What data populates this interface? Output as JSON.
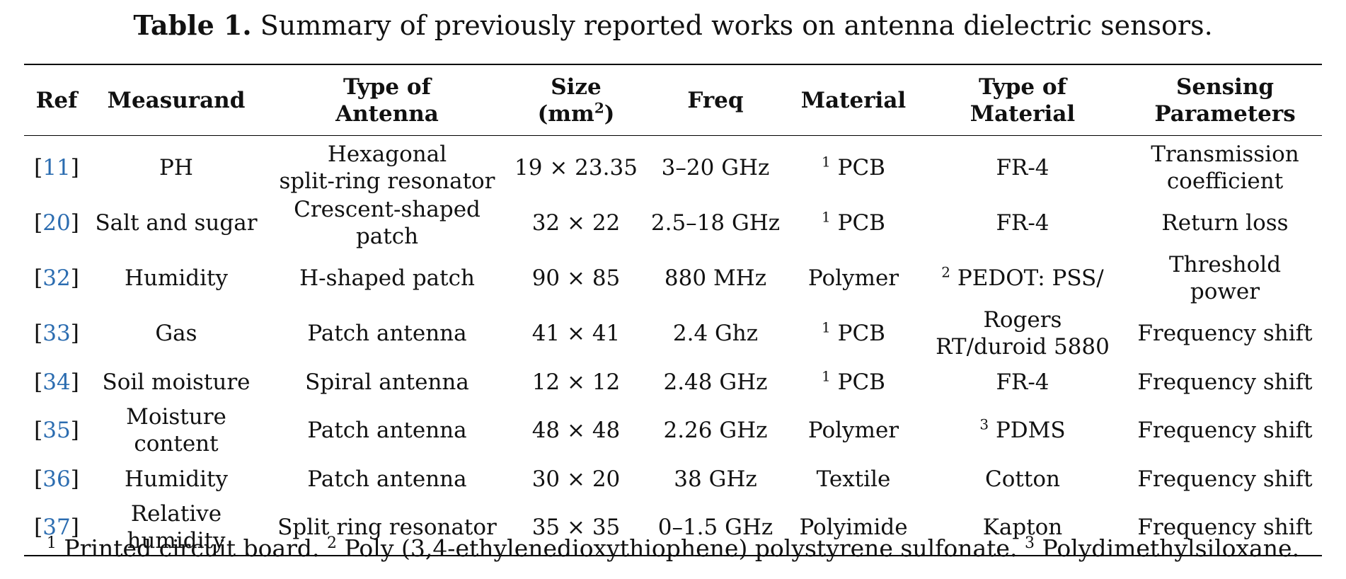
{
  "caption": {
    "label": "Table 1.",
    "text": "Summary of previously reported works on antenna dielectric sensors."
  },
  "headers": {
    "ref": "Ref",
    "measurand": "Measurand",
    "type_of_antenna_1": "Type of",
    "type_of_antenna_2": "Antenna",
    "size_1": "Size",
    "size_2_pre": "(mm",
    "size_2_sup": "2",
    "size_2_post": ")",
    "freq": "Freq",
    "material": "Material",
    "type_of_material_1": "Type of",
    "type_of_material_2": "Material",
    "sensing_1": "Sensing",
    "sensing_2": "Parameters"
  },
  "rows": [
    {
      "ref": "11",
      "measurand_1": "PH",
      "measurand_2": "",
      "antenna_1": "Hexagonal",
      "antenna_2": "split-ring resonator",
      "size": "19 × 23.35",
      "freq": "3–20 GHz",
      "material_sup": "1",
      "material": "PCB",
      "type_material_sup": "",
      "type_material_1": "FR-4",
      "type_material_2": "",
      "sensing_1": "Transmission",
      "sensing_2": "coefficient"
    },
    {
      "ref": "20",
      "measurand_1": "Salt and sugar",
      "measurand_2": "",
      "antenna_1": "Crescent-shaped",
      "antenna_2": "patch",
      "size": "32 × 22",
      "freq": "2.5–18 GHz",
      "material_sup": "1",
      "material": "PCB",
      "type_material_sup": "",
      "type_material_1": "FR-4",
      "type_material_2": "",
      "sensing_1": "Return loss",
      "sensing_2": ""
    },
    {
      "ref": "32",
      "measurand_1": "Humidity",
      "measurand_2": "",
      "antenna_1": "H-shaped patch",
      "antenna_2": "",
      "size": "90 × 85",
      "freq": "880 MHz",
      "material_sup": "",
      "material": "Polymer",
      "type_material_sup": "2",
      "type_material_1": "PEDOT: PSS/",
      "type_material_2": "",
      "sensing_1": "Threshold",
      "sensing_2": "power"
    },
    {
      "ref": "33",
      "measurand_1": "Gas",
      "measurand_2": "",
      "antenna_1": "Patch antenna",
      "antenna_2": "",
      "size": "41 × 41",
      "freq": "2.4 Ghz",
      "material_sup": "1",
      "material": "PCB",
      "type_material_sup": "",
      "type_material_1": "Rogers",
      "type_material_2": "RT/duroid 5880",
      "sensing_1": "Frequency shift",
      "sensing_2": ""
    },
    {
      "ref": "34",
      "measurand_1": "Soil moisture",
      "measurand_2": "",
      "antenna_1": "Spiral antenna",
      "antenna_2": "",
      "size": "12 × 12",
      "freq": "2.48 GHz",
      "material_sup": "1",
      "material": "PCB",
      "type_material_sup": "",
      "type_material_1": "FR-4",
      "type_material_2": "",
      "sensing_1": "Frequency shift",
      "sensing_2": ""
    },
    {
      "ref": "35",
      "measurand_1": "Moisture",
      "measurand_2": "content",
      "antenna_1": "Patch antenna",
      "antenna_2": "",
      "size": "48 × 48",
      "freq": "2.26 GHz",
      "material_sup": "",
      "material": "Polymer",
      "type_material_sup": "3",
      "type_material_1": "PDMS",
      "type_material_2": "",
      "sensing_1": "Frequency shift",
      "sensing_2": ""
    },
    {
      "ref": "36",
      "measurand_1": "Humidity",
      "measurand_2": "",
      "antenna_1": "Patch antenna",
      "antenna_2": "",
      "size": "30 × 20",
      "freq": "38 GHz",
      "material_sup": "",
      "material": "Textile",
      "type_material_sup": "",
      "type_material_1": "Cotton",
      "type_material_2": "",
      "sensing_1": "Frequency shift",
      "sensing_2": ""
    },
    {
      "ref": "37",
      "measurand_1": "Relative",
      "measurand_2": "humidity",
      "antenna_1": "Split ring resonator",
      "antenna_2": "",
      "size": "35 × 35",
      "freq": "0–1.5 GHz",
      "material_sup": "",
      "material": "Polyimide",
      "type_material_sup": "",
      "type_material_1": "Kapton",
      "type_material_2": "",
      "sensing_1": "Frequency shift",
      "sensing_2": ""
    }
  ],
  "footnotes": [
    {
      "mark": "1",
      "text": "Printed circuit board."
    },
    {
      "mark": "2",
      "text": "Poly (3,4-ethylenedioxythiophene) polystyrene sulfonate."
    },
    {
      "mark": "3",
      "text": "Polydimethylsiloxane."
    }
  ],
  "colors": {
    "ref_link": "#2b6cb0",
    "text": "#111111",
    "rule": "#000000"
  }
}
